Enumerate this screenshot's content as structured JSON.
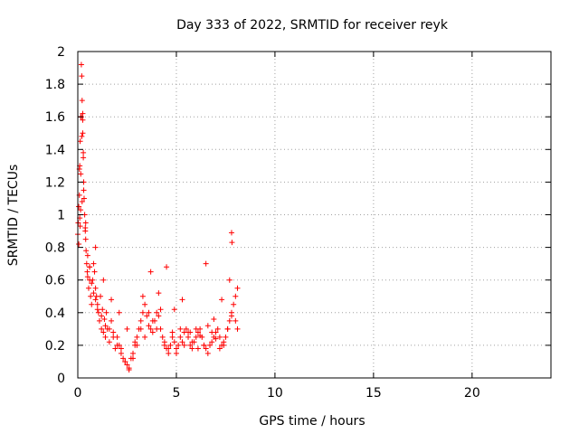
{
  "chart_data": {
    "type": "scatter",
    "title": "Day 333 of 2022, SRMTID for receiver reyk",
    "xlabel": "GPS time / hours",
    "ylabel": "SRMTID / TECUs",
    "xlim": [
      0,
      24
    ],
    "ylim": [
      0,
      2
    ],
    "xticks": [
      0,
      5,
      10,
      15,
      20
    ],
    "yticks": [
      0,
      0.2,
      0.4,
      0.6,
      0.8,
      1,
      1.2,
      1.4,
      1.6,
      1.8,
      2
    ],
    "grid": true,
    "marker": "+",
    "color": "#ff0000",
    "series": [
      {
        "x": [
          0.0,
          0.02,
          0.05,
          0.08,
          0.1,
          0.12,
          0.15,
          0.18,
          0.2,
          0.22,
          0.25,
          0.28,
          0.3,
          0.32,
          0.35,
          0.38,
          0.4,
          0.42,
          0.45,
          0.48,
          0.5,
          0.55,
          0.6,
          0.65,
          0.7,
          0.75,
          0.8,
          0.85,
          0.9,
          0.95,
          1.0,
          1.05,
          1.1,
          1.15,
          1.2,
          1.25,
          1.3,
          1.35,
          1.4,
          1.45,
          1.5,
          1.6,
          1.7,
          1.8,
          1.9,
          2.0,
          2.1,
          2.2,
          2.3,
          2.4,
          2.5,
          2.6,
          2.7,
          2.8,
          2.9,
          3.0,
          3.1,
          3.2,
          3.3,
          3.4,
          3.5,
          3.6,
          3.7,
          3.8,
          3.9,
          4.0,
          4.1,
          4.2,
          4.3,
          4.4,
          4.5,
          4.6,
          4.7,
          4.8,
          4.9,
          5.0,
          5.1,
          5.2,
          5.3,
          5.4,
          5.5,
          5.6,
          5.7,
          5.8,
          5.9,
          6.0,
          6.1,
          6.2,
          6.3,
          6.4,
          6.5,
          6.6,
          6.7,
          6.8,
          6.9,
          7.0,
          7.1,
          7.2,
          7.3,
          7.4,
          7.5,
          7.6,
          7.7,
          7.8,
          7.9,
          8.0,
          8.1,
          0.05,
          0.1,
          0.15,
          0.2,
          0.25,
          0.3,
          0.4,
          0.5,
          0.6,
          0.7,
          0.8,
          0.9,
          1.0,
          1.2,
          1.4,
          1.6,
          1.8,
          2.0,
          2.2,
          2.4,
          2.6,
          2.8,
          3.0,
          3.2,
          3.4,
          3.6,
          3.8,
          4.0,
          4.2,
          4.4,
          4.6,
          4.8,
          5.0,
          5.2,
          5.4,
          5.6,
          5.8,
          6.0,
          6.2,
          6.4,
          6.6,
          6.8,
          7.0,
          7.2,
          7.4,
          7.6,
          7.8,
          8.0,
          0.08,
          0.18,
          0.28,
          0.38,
          0.6,
          0.9,
          1.3,
          1.7,
          2.1,
          2.5,
          2.9,
          3.3,
          3.7,
          4.1,
          4.5,
          4.9,
          5.3,
          5.7,
          6.1,
          6.5,
          6.9,
          7.3,
          7.7,
          8.1,
          7.8,
          7.82,
          0.25,
          0.22,
          0.12,
          0.14
        ],
        "y": [
          0.88,
          0.95,
          1.05,
          1.12,
          1.3,
          1.45,
          1.6,
          1.92,
          1.85,
          1.7,
          1.5,
          1.35,
          1.2,
          1.1,
          1.0,
          0.9,
          0.85,
          0.78,
          0.7,
          0.65,
          0.62,
          0.55,
          0.6,
          0.5,
          0.45,
          0.6,
          0.7,
          0.65,
          0.55,
          0.5,
          0.45,
          0.4,
          0.35,
          0.5,
          0.3,
          0.42,
          0.28,
          0.36,
          0.25,
          0.4,
          0.3,
          0.22,
          0.35,
          0.28,
          0.18,
          0.25,
          0.2,
          0.15,
          0.12,
          0.1,
          0.08,
          0.05,
          0.12,
          0.15,
          0.2,
          0.25,
          0.3,
          0.35,
          0.4,
          0.45,
          0.38,
          0.32,
          0.3,
          0.28,
          0.35,
          0.4,
          0.38,
          0.3,
          0.25,
          0.2,
          0.18,
          0.15,
          0.2,
          0.25,
          0.22,
          0.18,
          0.2,
          0.25,
          0.22,
          0.28,
          0.3,
          0.25,
          0.2,
          0.18,
          0.22,
          0.25,
          0.28,
          0.3,
          0.25,
          0.2,
          0.18,
          0.15,
          0.2,
          0.22,
          0.25,
          0.28,
          0.3,
          0.25,
          0.2,
          0.22,
          0.25,
          0.3,
          0.35,
          0.4,
          0.45,
          0.35,
          0.3,
          0.82,
          0.98,
          1.25,
          1.48,
          1.58,
          1.15,
          0.95,
          0.75,
          0.68,
          0.58,
          0.52,
          0.48,
          0.42,
          0.38,
          0.32,
          0.3,
          0.25,
          0.2,
          0.18,
          0.1,
          0.06,
          0.12,
          0.2,
          0.3,
          0.25,
          0.4,
          0.35,
          0.3,
          0.42,
          0.22,
          0.18,
          0.28,
          0.15,
          0.3,
          0.2,
          0.28,
          0.22,
          0.3,
          0.26,
          0.2,
          0.32,
          0.28,
          0.24,
          0.18,
          0.2,
          0.3,
          0.38,
          0.5,
          1.28,
          1.6,
          1.38,
          0.92,
          0.68,
          0.8,
          0.6,
          0.48,
          0.4,
          0.3,
          0.22,
          0.5,
          0.65,
          0.52,
          0.68,
          0.42,
          0.48,
          0.28,
          0.18,
          0.7,
          0.36,
          0.48,
          0.6,
          0.55,
          0.89,
          0.83,
          1.62,
          1.08,
          0.93,
          1.03
        ]
      }
    ]
  }
}
